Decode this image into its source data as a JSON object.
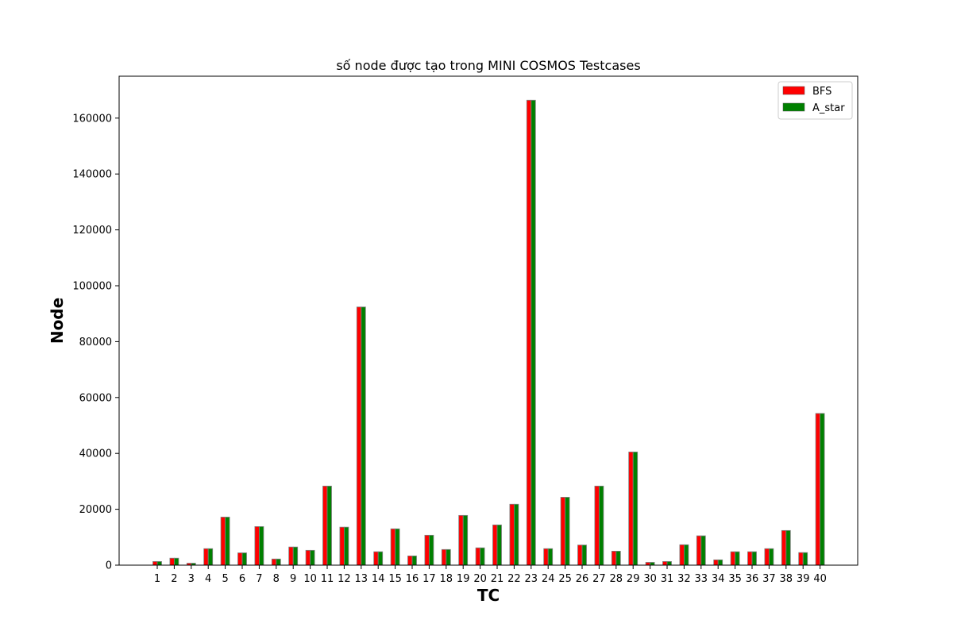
{
  "chart_data": {
    "type": "bar",
    "title": "số node được tạo trong MINI COSMOS Testcases",
    "xlabel": "TC",
    "ylabel": "Node",
    "categories": [
      "1",
      "2",
      "3",
      "4",
      "5",
      "6",
      "7",
      "8",
      "9",
      "10",
      "11",
      "12",
      "13",
      "14",
      "15",
      "16",
      "17",
      "18",
      "19",
      "20",
      "21",
      "22",
      "23",
      "24",
      "25",
      "26",
      "27",
      "28",
      "29",
      "30",
      "31",
      "32",
      "33",
      "34",
      "35",
      "36",
      "37",
      "38",
      "39",
      "40"
    ],
    "series": [
      {
        "name": "BFS",
        "color": "#ff0000",
        "values": [
          1300,
          2500,
          700,
          5900,
          17200,
          4400,
          13800,
          2200,
          6500,
          5300,
          28300,
          13600,
          92400,
          4800,
          13000,
          3300,
          10700,
          5600,
          17800,
          6200,
          14400,
          21800,
          166400,
          5900,
          24300,
          7200,
          28300,
          5000,
          40500,
          1000,
          1300,
          7300,
          10500,
          1900,
          4800,
          4800,
          5900,
          12400,
          4500,
          54300
        ]
      },
      {
        "name": "A_star",
        "color": "#008000",
        "values": [
          1300,
          2500,
          700,
          5900,
          17200,
          4400,
          13800,
          2200,
          6500,
          5300,
          28300,
          13600,
          92400,
          4800,
          13000,
          3300,
          10700,
          5600,
          17800,
          6200,
          14400,
          21800,
          166400,
          5900,
          24300,
          7200,
          28300,
          5000,
          40500,
          1000,
          1300,
          7300,
          10500,
          1900,
          4800,
          4800,
          5900,
          12400,
          4500,
          54300
        ]
      }
    ],
    "yticks": [
      "0",
      "20000",
      "40000",
      "60000",
      "80000",
      "100000",
      "120000",
      "140000",
      "160000"
    ],
    "ylim": [
      0,
      175000
    ],
    "grid": false,
    "legend_position": "top-right"
  }
}
